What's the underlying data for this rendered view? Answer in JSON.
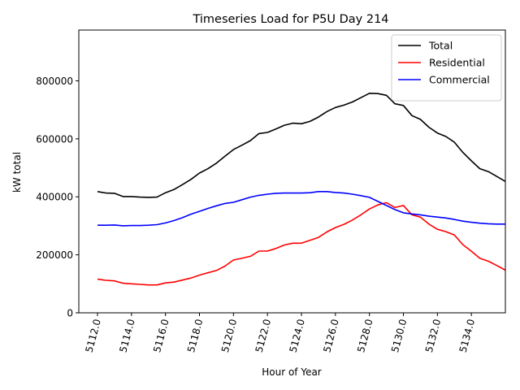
{
  "chart_data": {
    "type": "line",
    "title": "Timeseries Load for P5U   Day 214",
    "xlabel": "Hour of Year",
    "ylabel": "kW total",
    "xlim": [
      5110.9,
      5136.0
    ],
    "ylim": [
      0,
      975000
    ],
    "x_ticks": [
      5112,
      5114,
      5116,
      5118,
      5120,
      5122,
      5124,
      5126,
      5128,
      5130,
      5132,
      5134
    ],
    "x_tick_labels": [
      "5112.0",
      "5114.0",
      "5116.0",
      "5118.0",
      "5120.0",
      "5122.0",
      "5124.0",
      "5126.0",
      "5128.0",
      "5130.0",
      "5132.0",
      "5134.0"
    ],
    "y_ticks": [
      0,
      200000,
      400000,
      600000,
      800000
    ],
    "y_tick_labels": [
      "0",
      "200000",
      "400000",
      "600000",
      "800000"
    ],
    "legend_position": "top-right",
    "series": [
      {
        "name": "Total",
        "color": "#000000",
        "points": [
          [
            5112.0,
            418000
          ],
          [
            5112.5,
            413000
          ],
          [
            5113.0,
            412000
          ],
          [
            5113.5,
            401000
          ],
          [
            5114.0,
            401000
          ],
          [
            5114.5,
            399000
          ],
          [
            5115.0,
            398000
          ],
          [
            5115.5,
            399000
          ],
          [
            5116.0,
            414000
          ],
          [
            5116.5,
            425000
          ],
          [
            5117.0,
            442000
          ],
          [
            5117.5,
            460000
          ],
          [
            5118.0,
            482000
          ],
          [
            5118.5,
            497000
          ],
          [
            5119.0,
            516000
          ],
          [
            5119.5,
            540000
          ],
          [
            5120.0,
            563000
          ],
          [
            5120.5,
            578000
          ],
          [
            5121.0,
            594000
          ],
          [
            5121.5,
            618000
          ],
          [
            5122.0,
            622000
          ],
          [
            5122.5,
            634000
          ],
          [
            5123.0,
            647000
          ],
          [
            5123.5,
            654000
          ],
          [
            5124.0,
            652000
          ],
          [
            5124.5,
            660000
          ],
          [
            5125.0,
            675000
          ],
          [
            5125.5,
            694000
          ],
          [
            5126.0,
            708000
          ],
          [
            5126.5,
            716000
          ],
          [
            5127.0,
            727000
          ],
          [
            5127.5,
            742000
          ],
          [
            5128.0,
            757000
          ],
          [
            5128.5,
            756000
          ],
          [
            5129.0,
            750000
          ],
          [
            5129.5,
            721000
          ],
          [
            5130.0,
            715000
          ],
          [
            5130.5,
            680000
          ],
          [
            5131.0,
            667000
          ],
          [
            5131.5,
            640000
          ],
          [
            5132.0,
            620000
          ],
          [
            5132.5,
            608000
          ],
          [
            5133.0,
            588000
          ],
          [
            5133.5,
            553000
          ],
          [
            5134.0,
            524000
          ],
          [
            5134.5,
            497000
          ],
          [
            5135.0,
            487000
          ],
          [
            5135.5,
            470000
          ],
          [
            5136.0,
            453000
          ]
        ]
      },
      {
        "name": "Residential",
        "color": "#ff0000",
        "points": [
          [
            5112.0,
            116000
          ],
          [
            5112.5,
            112000
          ],
          [
            5113.0,
            110000
          ],
          [
            5113.5,
            102000
          ],
          [
            5114.0,
            100000
          ],
          [
            5114.5,
            98000
          ],
          [
            5115.0,
            96000
          ],
          [
            5115.5,
            96000
          ],
          [
            5116.0,
            103000
          ],
          [
            5116.5,
            106000
          ],
          [
            5117.0,
            113000
          ],
          [
            5117.5,
            120000
          ],
          [
            5118.0,
            130000
          ],
          [
            5118.5,
            138000
          ],
          [
            5119.0,
            146000
          ],
          [
            5119.5,
            161000
          ],
          [
            5120.0,
            182000
          ],
          [
            5120.5,
            188000
          ],
          [
            5121.0,
            195000
          ],
          [
            5121.5,
            213000
          ],
          [
            5122.0,
            213000
          ],
          [
            5122.5,
            222000
          ],
          [
            5123.0,
            234000
          ],
          [
            5123.5,
            240000
          ],
          [
            5124.0,
            240000
          ],
          [
            5124.5,
            250000
          ],
          [
            5125.0,
            260000
          ],
          [
            5125.5,
            279000
          ],
          [
            5126.0,
            294000
          ],
          [
            5126.5,
            305000
          ],
          [
            5127.0,
            320000
          ],
          [
            5127.5,
            338000
          ],
          [
            5128.0,
            358000
          ],
          [
            5128.5,
            372000
          ],
          [
            5129.0,
            380000
          ],
          [
            5129.5,
            363000
          ],
          [
            5130.0,
            370000
          ],
          [
            5130.5,
            338000
          ],
          [
            5131.0,
            330000
          ],
          [
            5131.5,
            306000
          ],
          [
            5132.0,
            288000
          ],
          [
            5132.5,
            280000
          ],
          [
            5133.0,
            268000
          ],
          [
            5133.5,
            235000
          ],
          [
            5134.0,
            212000
          ],
          [
            5134.5,
            188000
          ],
          [
            5135.0,
            178000
          ],
          [
            5135.5,
            163000
          ],
          [
            5136.0,
            147000
          ]
        ]
      },
      {
        "name": "Commercial",
        "color": "#0000ff",
        "points": [
          [
            5112.0,
            302000
          ],
          [
            5112.5,
            302000
          ],
          [
            5113.0,
            303000
          ],
          [
            5113.5,
            300000
          ],
          [
            5114.0,
            301000
          ],
          [
            5114.5,
            301000
          ],
          [
            5115.0,
            302000
          ],
          [
            5115.5,
            304000
          ],
          [
            5116.0,
            310000
          ],
          [
            5116.5,
            318000
          ],
          [
            5117.0,
            328000
          ],
          [
            5117.5,
            340000
          ],
          [
            5118.0,
            350000
          ],
          [
            5118.5,
            360000
          ],
          [
            5119.0,
            369000
          ],
          [
            5119.5,
            377000
          ],
          [
            5120.0,
            381000
          ],
          [
            5120.5,
            390000
          ],
          [
            5121.0,
            399000
          ],
          [
            5121.5,
            405000
          ],
          [
            5122.0,
            409000
          ],
          [
            5122.5,
            412000
          ],
          [
            5123.0,
            413000
          ],
          [
            5123.5,
            413000
          ],
          [
            5124.0,
            413000
          ],
          [
            5124.5,
            414000
          ],
          [
            5125.0,
            418000
          ],
          [
            5125.5,
            418000
          ],
          [
            5126.0,
            415000
          ],
          [
            5126.5,
            413000
          ],
          [
            5127.0,
            409000
          ],
          [
            5127.5,
            404000
          ],
          [
            5128.0,
            398000
          ],
          [
            5128.5,
            384000
          ],
          [
            5129.0,
            370000
          ],
          [
            5129.5,
            356000
          ],
          [
            5130.0,
            345000
          ],
          [
            5130.5,
            341000
          ],
          [
            5131.0,
            338000
          ],
          [
            5131.5,
            333000
          ],
          [
            5132.0,
            330000
          ],
          [
            5132.5,
            327000
          ],
          [
            5133.0,
            322000
          ],
          [
            5133.5,
            316000
          ],
          [
            5134.0,
            312000
          ],
          [
            5134.5,
            309000
          ],
          [
            5135.0,
            307000
          ],
          [
            5135.5,
            306000
          ],
          [
            5136.0,
            306000
          ]
        ]
      }
    ]
  }
}
